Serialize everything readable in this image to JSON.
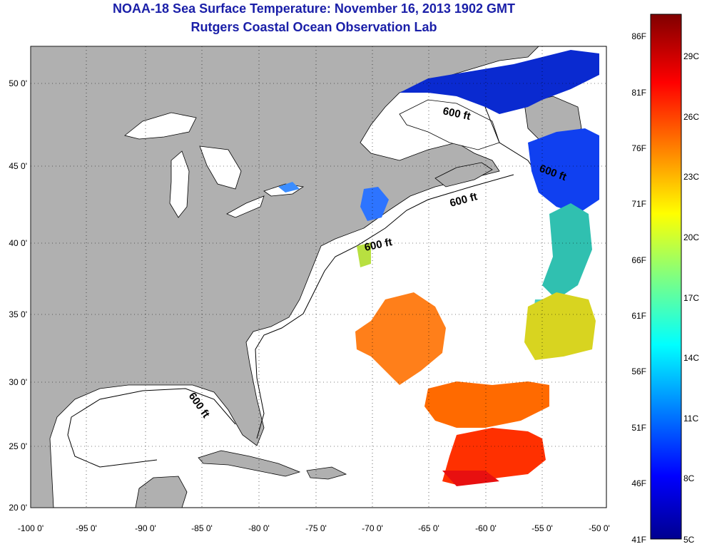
{
  "title": "NOAA-18 Sea Surface Temperature:  November 16, 2013 1902 GMT",
  "subtitle": "Rutgers Coastal Ocean Observation Lab",
  "x_ticks": [
    "-100 0'",
    "-95 0'",
    "-90 0'",
    "-85 0'",
    "-80 0'",
    "-75 0'",
    "-70 0'",
    "-65 0'",
    "-60 0'",
    "-55 0'",
    "-50 0'"
  ],
  "y_ticks": [
    "50 0'",
    "45 0'",
    "40 0'",
    "35 0'",
    "30 0'",
    "25 0'",
    "20 0'"
  ],
  "contour_label": "600 ft",
  "colorbar": {
    "fahrenheit": [
      "86F",
      "81F",
      "76F",
      "71F",
      "66F",
      "61F",
      "56F",
      "51F",
      "46F",
      "41F"
    ],
    "celsius": [
      "29C",
      "26C",
      "23C",
      "20C",
      "17C",
      "14C",
      "11C",
      "8C",
      "5C"
    ],
    "colors": [
      "#00008f",
      "#0000ff",
      "#0080ff",
      "#00ffff",
      "#80ff80",
      "#ffff00",
      "#ff8000",
      "#ff0000",
      "#800000"
    ]
  },
  "colors": {
    "land": "#b0b0b0",
    "water": "#ffffff",
    "title": "#1a1fa8"
  }
}
